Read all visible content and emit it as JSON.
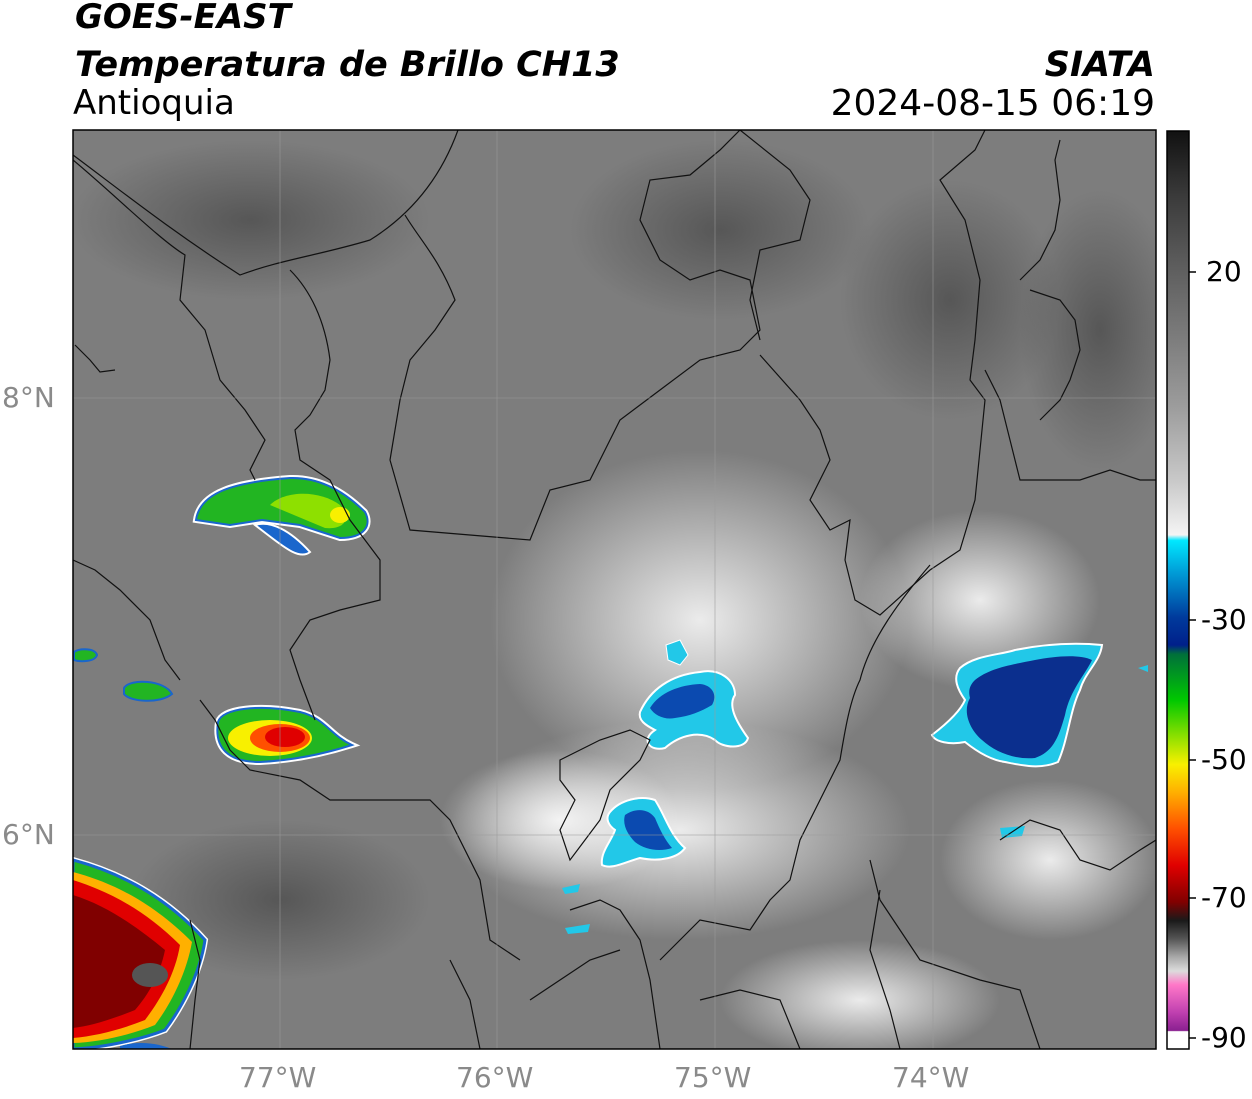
{
  "header": {
    "satellite": "GOES-EAST",
    "product": "Temperatura de Brillo CH13",
    "region": "Antioquia",
    "organization": "SIATA",
    "datetime": "2024-08-15 06:19"
  },
  "map": {
    "x_ticks": [
      {
        "lon": -77,
        "label": "77°W"
      },
      {
        "lon": -76,
        "label": "76°W"
      },
      {
        "lon": -75,
        "label": "75°W"
      },
      {
        "lon": -74,
        "label": "74°W"
      }
    ],
    "y_ticks": [
      {
        "lat": 8,
        "label": "8°N"
      },
      {
        "lat": 6,
        "label": "6°N"
      }
    ],
    "lon_range": [
      -77.95,
      -72.98
    ],
    "lat_range": [
      5.0,
      9.22
    ]
  },
  "colorbar": {
    "tick_labels": [
      "20",
      "-30",
      "-50",
      "-70",
      "-90"
    ],
    "tick_values": [
      20,
      -30,
      -50,
      -70,
      -90
    ]
  },
  "colors": {
    "background_gray": "#7d7d7d",
    "cold_blue": "#0b2f8e",
    "cyan": "#22c8e8",
    "green": "#1fb51f",
    "red": "#e11a10",
    "dark_red": "#6a0000"
  }
}
